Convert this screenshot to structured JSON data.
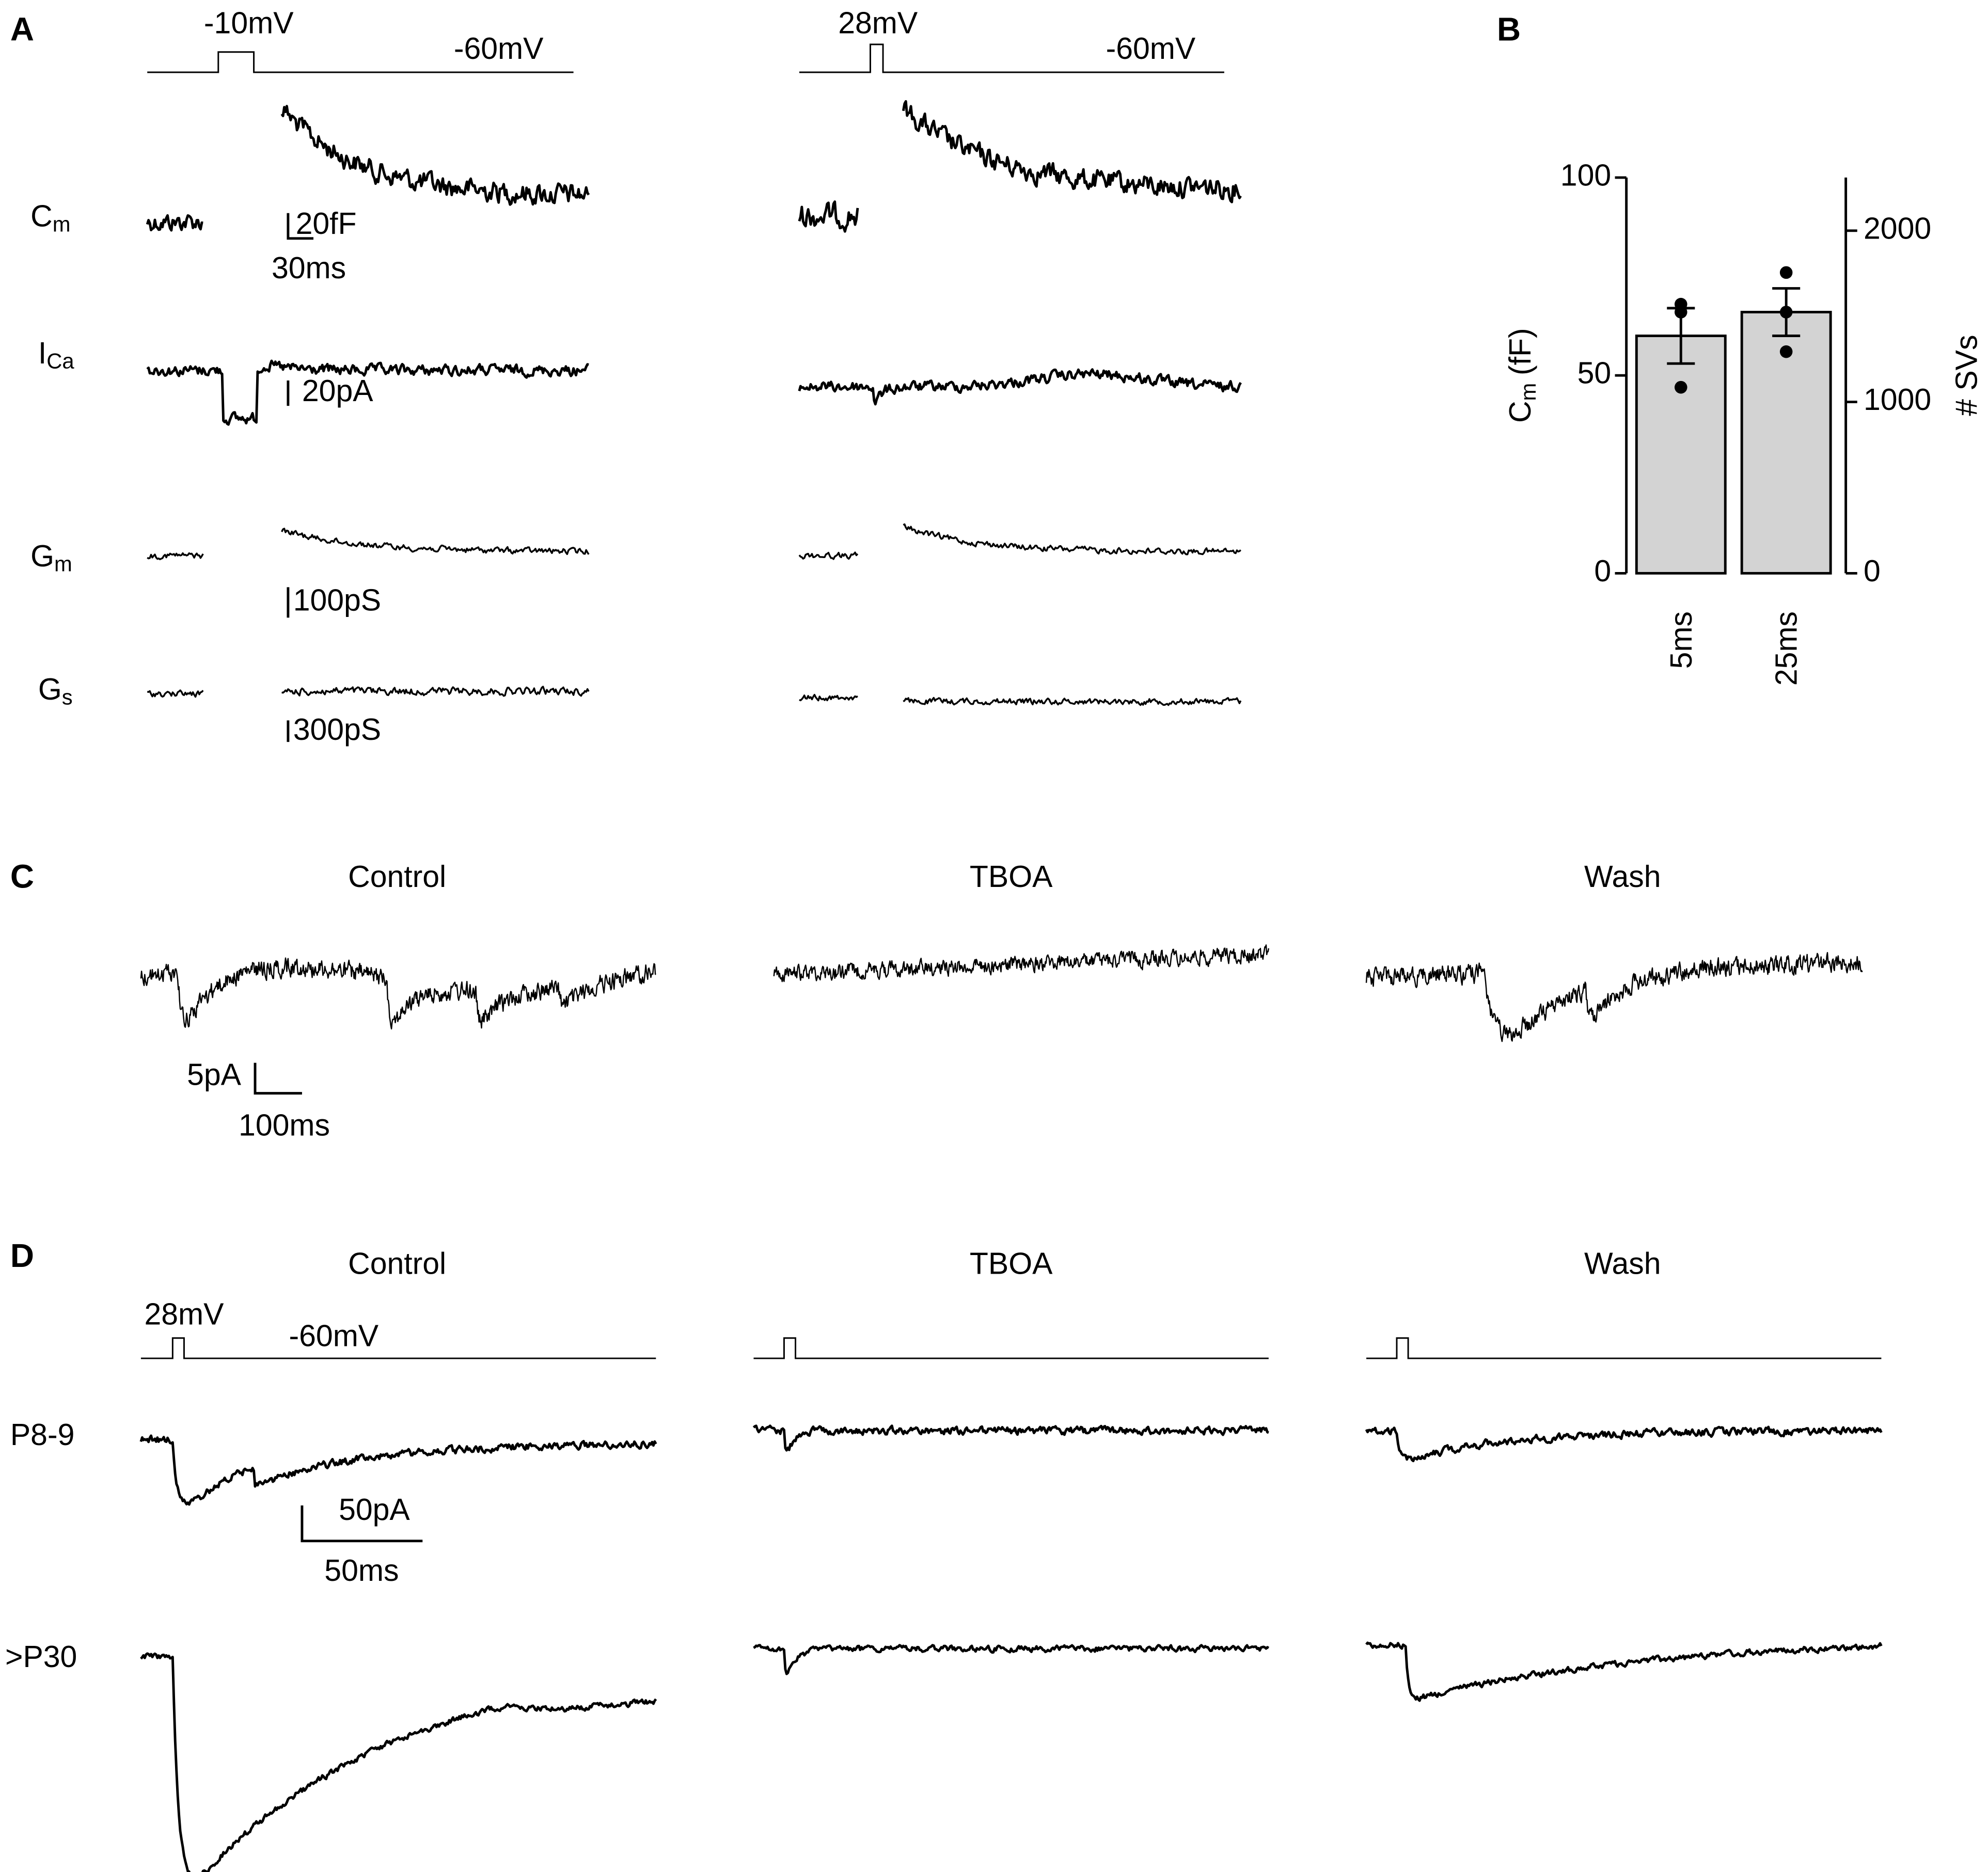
{
  "panel_labels": [
    "A",
    "B",
    "C",
    "D"
  ],
  "panel_a": {
    "left_step": "-10mV",
    "left_hold": "-60mV",
    "right_step": "28mV",
    "right_hold": "-60mV",
    "rows": [
      {
        "main": "C",
        "sub": "m"
      },
      {
        "main": "I",
        "sub": "Ca"
      },
      {
        "main": "G",
        "sub": "m"
      },
      {
        "main": "G",
        "sub": "s"
      }
    ],
    "scales": {
      "cm": "20fF",
      "time": "30ms",
      "ica": "20pA",
      "gm": "100pS",
      "gs": "300pS"
    }
  },
  "panel_c": {
    "titles": [
      "Control",
      "TBOA",
      "Wash"
    ],
    "scale_y": "5pA",
    "scale_x": "100ms"
  },
  "panel_d": {
    "titles": [
      "Control",
      "TBOA",
      "Wash"
    ],
    "step": "28mV",
    "hold": "-60mV",
    "rows": [
      "P8-9",
      ">P30"
    ],
    "scale_y": "50pA",
    "scale_x": "50ms"
  },
  "chart_data": {
    "type": "bar",
    "categories": [
      "5ms",
      "25ms"
    ],
    "values": [
      60,
      66
    ],
    "errors": [
      7,
      6
    ],
    "points": [
      [
        68,
        66,
        47
      ],
      [
        76,
        66,
        56
      ]
    ],
    "color": "#d3d3d3",
    "ylabel": {
      "main": "C",
      "sub": "m",
      "unit": "(fF)"
    },
    "y2label": "# SVs",
    "ylim": [
      0,
      100
    ],
    "yticks": [
      0,
      50,
      100
    ],
    "y2lim": [
      0,
      2310
    ],
    "y2ticks": [
      0,
      1000,
      2000
    ]
  }
}
